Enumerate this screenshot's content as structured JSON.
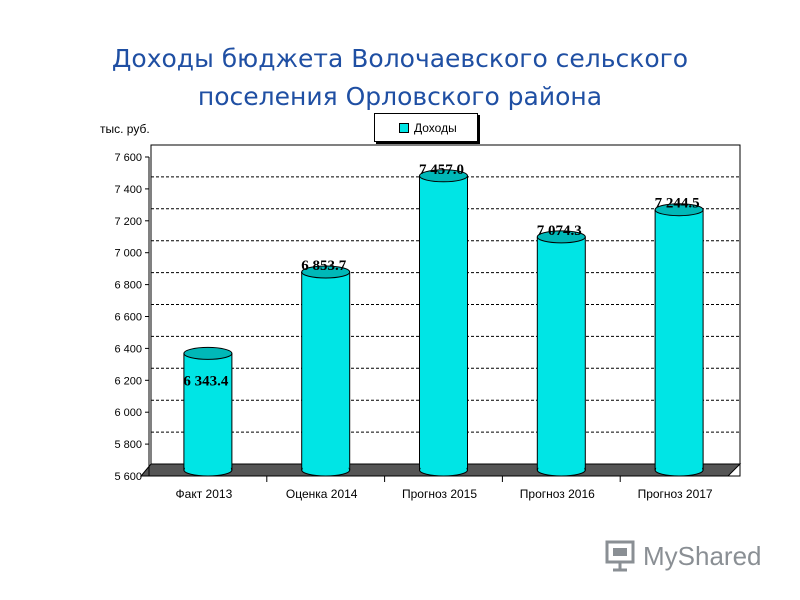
{
  "title": {
    "line1": "Доходы бюджета Волочаевского сельского",
    "line2": "поселения Орловского района"
  },
  "chart_data": {
    "type": "bar",
    "categories": [
      "Факт 2013",
      "Оценка 2014",
      "Прогноз 2015",
      "Прогноз 2016",
      "Прогноз 2017"
    ],
    "series": [
      {
        "name": "Доходы",
        "values": [
          6343.4,
          6853.7,
          7457.0,
          7074.3,
          7244.5
        ]
      }
    ],
    "data_labels": [
      "6 343.4",
      "6 853.7",
      "7 457.0",
      "7 074.3",
      "7 244.5"
    ],
    "y_ticks": [
      "5 600",
      "5 800",
      "6 000",
      "6 200",
      "6 400",
      "6 600",
      "6 800",
      "7 000",
      "7 200",
      "7 400",
      "7 600"
    ],
    "ylim": [
      5600,
      7600
    ],
    "ylabel": "тыс. руб.",
    "legend_position": "top-center",
    "grid": true,
    "bar_color": "#00e5e5"
  },
  "watermark": {
    "text": "MyShared"
  }
}
